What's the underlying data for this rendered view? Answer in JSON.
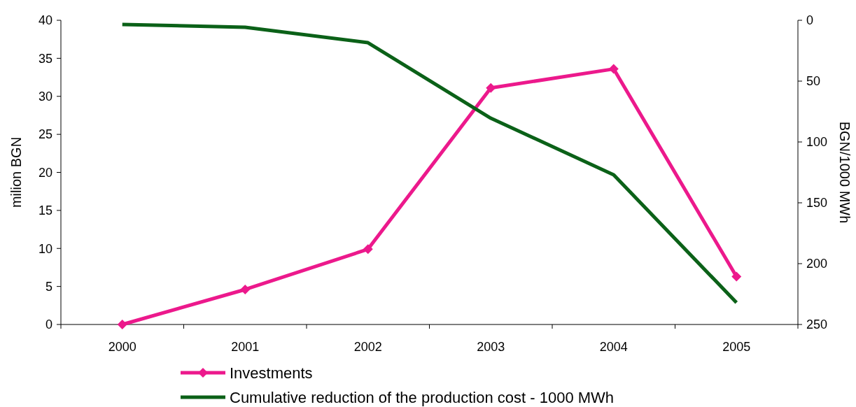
{
  "chart_data": {
    "type": "line",
    "xlabel": null,
    "ylabel": "milion BGN",
    "y2label": "BGN/1000 MWh",
    "categories": [
      "2000",
      "2001",
      "2002",
      "2003",
      "2004",
      "2005"
    ],
    "ylim": [
      0,
      40
    ],
    "yticks": [
      0,
      5,
      10,
      15,
      20,
      25,
      30,
      35,
      40
    ],
    "y2lim": [
      250,
      0
    ],
    "y2ticks": [
      0,
      50,
      100,
      150,
      200,
      250
    ],
    "grid": false,
    "legend": "bottom",
    "series": [
      {
        "name": "Investments",
        "color": "#ec198c",
        "marker": "diamond",
        "values": [
          0,
          4.6,
          9.9,
          31.1,
          33.6,
          6.3
        ]
      },
      {
        "name": "Cumulative reduction of the production cost - 1000 MWh",
        "color": "#0b6118",
        "marker": "none",
        "axis": "y2",
        "values": [
          3.4,
          5.7,
          18.4,
          80.5,
          127,
          232
        ]
      }
    ]
  }
}
